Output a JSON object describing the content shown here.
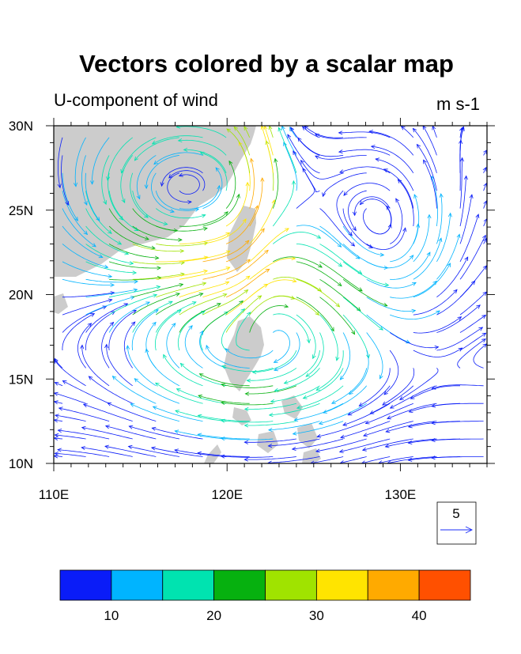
{
  "chart_data": {
    "type": "streamline",
    "title": "Vectors colored by a scalar map",
    "left_string": "U-component of wind",
    "right_string": "m s-1",
    "x_axis": {
      "ticks": [
        110,
        120,
        130
      ],
      "tick_labels": [
        "110E",
        "120E",
        "130E"
      ],
      "range": [
        110,
        135
      ]
    },
    "y_axis": {
      "ticks": [
        10,
        15,
        20,
        25,
        30
      ],
      "tick_labels": [
        "10N",
        "15N",
        "20N",
        "25N",
        "30N"
      ],
      "range": [
        10,
        30
      ]
    },
    "reference_vector": {
      "magnitude_label": "5"
    },
    "colorbar": {
      "colors": [
        "#0a1cf8",
        "#00b4ff",
        "#00e3b0",
        "#06b10f",
        "#a0e300",
        "#ffe400",
        "#ffaa00",
        "#ff5000"
      ],
      "labels": [
        "10",
        "20",
        "30",
        "40"
      ],
      "label_positions": [
        1,
        3,
        5,
        7
      ]
    },
    "land_color": "#cccccc",
    "circulations": [
      {
        "name": "cyclone-west",
        "center_lon": 117.7,
        "center_lat": 26.1,
        "radius_lon": 5.5,
        "radius_lat": 4.5,
        "direction": "ccw",
        "peak_speed": 20
      },
      {
        "name": "cyclone-east",
        "center_lon": 128.8,
        "center_lat": 23.2,
        "radius_lon": 4.0,
        "radius_lat": 5.5,
        "direction": "ccw",
        "peak_speed": 12
      },
      {
        "name": "anticyclone-south",
        "center_lon": 121.5,
        "center_lat": 17.5,
        "radius_lon": 6.0,
        "radius_lat": 4.0,
        "direction": "cw",
        "peak_speed": 18
      }
    ],
    "jet": {
      "lon_start": 121.5,
      "lat_start": 19.0,
      "lon_end": 122.0,
      "lat_end": 30.0,
      "peak_speed": 28
    }
  }
}
